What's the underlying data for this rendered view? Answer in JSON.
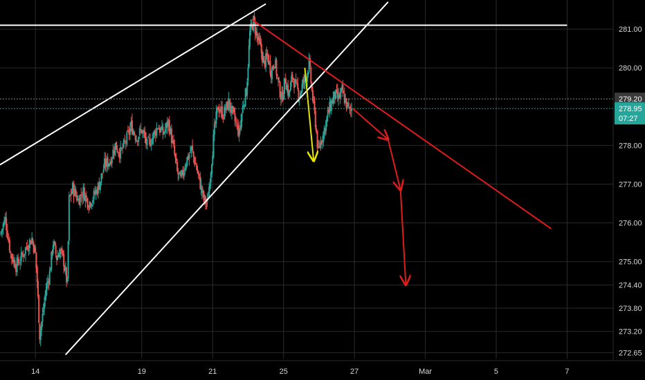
{
  "chart_data": {
    "type": "candlestick",
    "theme": {
      "background": "#000000",
      "grid": "#2b2b2b",
      "up_color": "#26a69a",
      "down_color": "#ef5350",
      "axis_text": "#d8d8d8"
    },
    "x_ticks": [
      {
        "label": "14",
        "x": 1
      },
      {
        "label": "19",
        "x": 4
      },
      {
        "label": "21",
        "x": 6
      },
      {
        "label": "25",
        "x": 8
      },
      {
        "label": "27",
        "x": 10
      },
      {
        "label": "Mar",
        "x": 12
      },
      {
        "label": "5",
        "x": 14
      },
      {
        "label": "7",
        "x": 16
      }
    ],
    "y_ticks": [
      "281.00",
      "280.00",
      "278.00",
      "277.00",
      "276.00",
      "275.00",
      "274.40",
      "273.80",
      "273.20",
      "272.65"
    ],
    "y_tick_values": [
      281.0,
      280.0,
      278.0,
      277.0,
      276.0,
      275.0,
      274.4,
      273.8,
      273.2,
      272.65
    ],
    "y_range": [
      272.5,
      281.75
    ],
    "x_range": [
      0,
      17.3
    ],
    "price_tags": [
      {
        "label": "279.20",
        "value": 279.2,
        "bg": "#3a3a3a",
        "line": "#8a8a8a"
      },
      {
        "label": "278.95",
        "value": 278.95,
        "bg": "#26a69a",
        "line": "#26a69a"
      },
      {
        "label": "07:27",
        "value": 278.7,
        "bg": "#26a69a",
        "line": null
      }
    ],
    "segments": [
      {
        "name": "white-horizontal-resistance",
        "color": "#ffffff",
        "from": [
          0.0,
          281.1
        ],
        "to": [
          16.0,
          281.1
        ]
      },
      {
        "name": "white-channel-upper",
        "color": "#ffffff",
        "from": [
          0.0,
          277.5
        ],
        "to": [
          7.5,
          281.65
        ]
      },
      {
        "name": "white-channel-lower",
        "color": "#ffffff",
        "from": [
          1.85,
          272.6
        ],
        "to": [
          10.95,
          281.7
        ]
      },
      {
        "name": "red-downtrend-line",
        "color": "#e01c1c",
        "from": [
          7.1,
          281.25
        ],
        "to": [
          15.55,
          275.85
        ]
      },
      {
        "name": "yellow-arrow",
        "color": "#e6e600",
        "from": [
          8.6,
          280.0
        ],
        "to": [
          8.85,
          277.6
        ],
        "arrow": true
      },
      {
        "name": "red-path-1",
        "color": "#e01c1c",
        "from": [
          9.95,
          278.95
        ],
        "to": [
          10.95,
          278.15
        ],
        "arrow": true
      },
      {
        "name": "red-path-2",
        "color": "#e01c1c",
        "from": [
          10.95,
          278.15
        ],
        "to": [
          11.3,
          276.85
        ],
        "arrow": true
      },
      {
        "name": "red-path-3",
        "color": "#e01c1c",
        "from": [
          11.3,
          276.85
        ],
        "to": [
          11.45,
          274.4
        ],
        "arrow": true
      }
    ],
    "price_path": [
      [
        0.0,
        275.7
      ],
      [
        0.15,
        276.1
      ],
      [
        0.3,
        275.2
      ],
      [
        0.45,
        274.9
      ],
      [
        0.6,
        275.1
      ],
      [
        0.75,
        275.4
      ],
      [
        0.9,
        275.6
      ],
      [
        1.0,
        275.2
      ],
      [
        1.05,
        274.5
      ],
      [
        1.12,
        273.1
      ],
      [
        1.2,
        273.6
      ],
      [
        1.3,
        274.3
      ],
      [
        1.4,
        274.7
      ],
      [
        1.5,
        275.5
      ],
      [
        1.6,
        275.1
      ],
      [
        1.7,
        275.3
      ],
      [
        1.8,
        275.0
      ],
      [
        1.9,
        274.4
      ],
      [
        1.95,
        276.6
      ],
      [
        2.05,
        276.9
      ],
      [
        2.2,
        276.6
      ],
      [
        2.35,
        276.8
      ],
      [
        2.5,
        276.5
      ],
      [
        2.65,
        276.7
      ],
      [
        2.8,
        277.0
      ],
      [
        2.95,
        277.5
      ],
      [
        3.1,
        277.6
      ],
      [
        3.25,
        278.0
      ],
      [
        3.4,
        277.8
      ],
      [
        3.55,
        278.1
      ],
      [
        3.7,
        278.5
      ],
      [
        3.85,
        278.2
      ],
      [
        4.0,
        278.4
      ],
      [
        4.15,
        278.0
      ],
      [
        4.3,
        278.2
      ],
      [
        4.45,
        278.5
      ],
      [
        4.6,
        278.3
      ],
      [
        4.75,
        278.6
      ],
      [
        4.9,
        277.9
      ],
      [
        5.0,
        277.3
      ],
      [
        5.1,
        277.1
      ],
      [
        5.25,
        277.6
      ],
      [
        5.4,
        277.9
      ],
      [
        5.55,
        277.4
      ],
      [
        5.65,
        277.0
      ],
      [
        5.75,
        276.6
      ],
      [
        5.85,
        276.5
      ],
      [
        5.95,
        277.4
      ],
      [
        6.05,
        278.4
      ],
      [
        6.15,
        279.0
      ],
      [
        6.3,
        278.8
      ],
      [
        6.45,
        279.1
      ],
      [
        6.6,
        278.7
      ],
      [
        6.75,
        278.3
      ],
      [
        6.85,
        279.0
      ],
      [
        6.95,
        279.4
      ],
      [
        7.0,
        280.1
      ],
      [
        7.05,
        280.9
      ],
      [
        7.15,
        281.2
      ],
      [
        7.25,
        280.8
      ],
      [
        7.35,
        280.5
      ],
      [
        7.45,
        280.1
      ],
      [
        7.55,
        280.3
      ],
      [
        7.65,
        279.9
      ],
      [
        7.75,
        280.2
      ],
      [
        7.85,
        279.6
      ],
      [
        7.95,
        279.2
      ],
      [
        8.05,
        279.7
      ],
      [
        8.15,
        279.3
      ],
      [
        8.25,
        279.8
      ],
      [
        8.35,
        279.5
      ],
      [
        8.45,
        279.3
      ],
      [
        8.55,
        279.6
      ],
      [
        8.65,
        279.8
      ],
      [
        8.72,
        280.1
      ],
      [
        8.8,
        279.4
      ],
      [
        8.9,
        278.6
      ],
      [
        8.98,
        277.8
      ],
      [
        9.05,
        278.1
      ],
      [
        9.15,
        278.4
      ],
      [
        9.25,
        278.8
      ],
      [
        9.35,
        279.1
      ],
      [
        9.45,
        279.3
      ],
      [
        9.55,
        279.2
      ],
      [
        9.65,
        279.4
      ],
      [
        9.72,
        279.2
      ],
      [
        9.8,
        279.0
      ],
      [
        9.87,
        278.85
      ],
      [
        9.92,
        278.95
      ]
    ]
  }
}
